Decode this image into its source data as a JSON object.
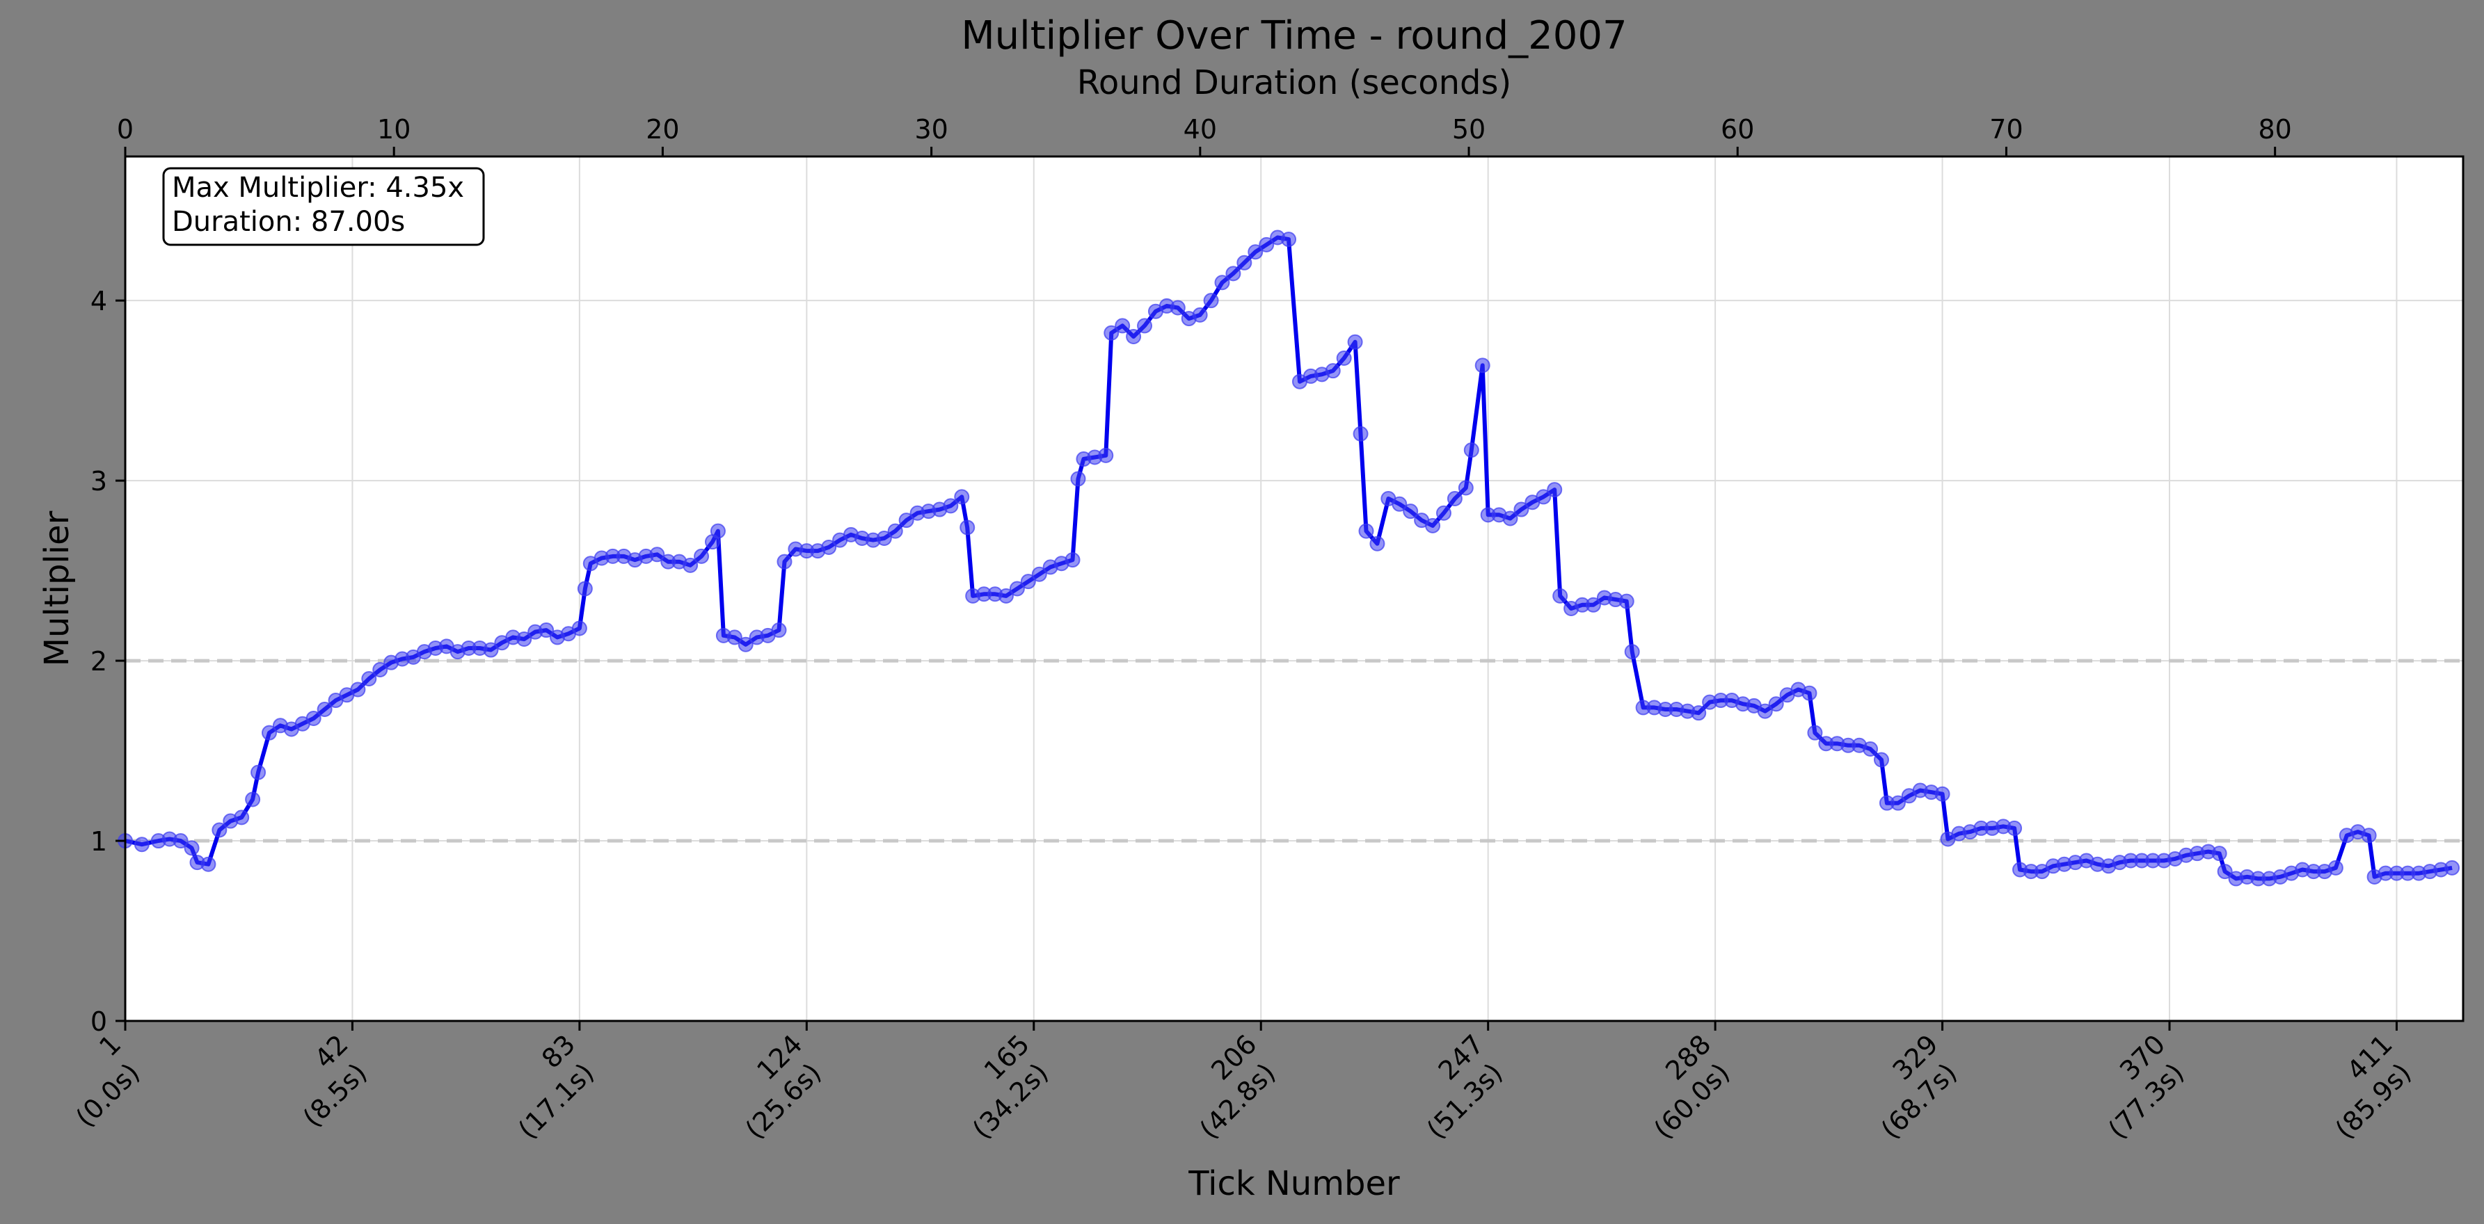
{
  "colors": {
    "background": "#808080",
    "plot_background": "#ffffff",
    "line": "#0000ee",
    "marker": "#3b3bf0",
    "grid": "#dcdcdc",
    "reference_line": "#c8c8c8"
  },
  "chart_data": {
    "type": "line",
    "title": "Multiplier Over Time - round_2007",
    "xlabel": "Tick Number",
    "ylabel": "Multiplier",
    "top_xlabel": "Round Duration (seconds)",
    "xlim": [
      1,
      423
    ],
    "ylim": [
      0,
      4.8
    ],
    "top_xlim": [
      0,
      87
    ],
    "grid": true,
    "y_ticks": [
      0,
      1,
      2,
      3,
      4
    ],
    "top_x_ticks": [
      0,
      10,
      20,
      30,
      40,
      50,
      60,
      70,
      80
    ],
    "x_ticks": [
      {
        "value": 1,
        "label": "1",
        "sublabel": "(0.0s)"
      },
      {
        "value": 42,
        "label": "42",
        "sublabel": "(8.5s)"
      },
      {
        "value": 83,
        "label": "83",
        "sublabel": "(17.1s)"
      },
      {
        "value": 124,
        "label": "124",
        "sublabel": "(25.6s)"
      },
      {
        "value": 165,
        "label": "165",
        "sublabel": "(34.2s)"
      },
      {
        "value": 206,
        "label": "206",
        "sublabel": "(42.8s)"
      },
      {
        "value": 247,
        "label": "247",
        "sublabel": "(51.3s)"
      },
      {
        "value": 288,
        "label": "288",
        "sublabel": "(60.0s)"
      },
      {
        "value": 329,
        "label": "329",
        "sublabel": "(68.7s)"
      },
      {
        "value": 370,
        "label": "370",
        "sublabel": "(77.3s)"
      },
      {
        "value": 411,
        "label": "411",
        "sublabel": "(85.9s)"
      }
    ],
    "reference_lines": [
      1,
      2
    ],
    "annotation": {
      "lines": [
        "Max Multiplier: 4.35x",
        "Duration: 87.00s"
      ],
      "position": "top-left"
    },
    "series": [
      {
        "values": [
          [
            1,
            1.0
          ],
          [
            4,
            0.98
          ],
          [
            7,
            1.0
          ],
          [
            9,
            1.01
          ],
          [
            11,
            1.0
          ],
          [
            13,
            0.96
          ],
          [
            14,
            0.88
          ],
          [
            16,
            0.87
          ],
          [
            18,
            1.06
          ],
          [
            20,
            1.11
          ],
          [
            22,
            1.13
          ],
          [
            24,
            1.23
          ],
          [
            25,
            1.38
          ],
          [
            27,
            1.6
          ],
          [
            29,
            1.64
          ],
          [
            31,
            1.62
          ],
          [
            33,
            1.65
          ],
          [
            35,
            1.68
          ],
          [
            37,
            1.73
          ],
          [
            39,
            1.78
          ],
          [
            41,
            1.81
          ],
          [
            43,
            1.84
          ],
          [
            45,
            1.9
          ],
          [
            47,
            1.95
          ],
          [
            49,
            1.99
          ],
          [
            51,
            2.01
          ],
          [
            53,
            2.02
          ],
          [
            55,
            2.05
          ],
          [
            57,
            2.07
          ],
          [
            59,
            2.08
          ],
          [
            61,
            2.05
          ],
          [
            63,
            2.07
          ],
          [
            65,
            2.07
          ],
          [
            67,
            2.06
          ],
          [
            69,
            2.1
          ],
          [
            71,
            2.13
          ],
          [
            73,
            2.12
          ],
          [
            75,
            2.16
          ],
          [
            77,
            2.17
          ],
          [
            79,
            2.13
          ],
          [
            81,
            2.15
          ],
          [
            83,
            2.18
          ],
          [
            84,
            2.4
          ],
          [
            85,
            2.54
          ],
          [
            87,
            2.57
          ],
          [
            89,
            2.58
          ],
          [
            91,
            2.58
          ],
          [
            93,
            2.56
          ],
          [
            95,
            2.58
          ],
          [
            97,
            2.59
          ],
          [
            99,
            2.55
          ],
          [
            101,
            2.55
          ],
          [
            103,
            2.53
          ],
          [
            105,
            2.58
          ],
          [
            107,
            2.66
          ],
          [
            108,
            2.72
          ],
          [
            109,
            2.14
          ],
          [
            111,
            2.13
          ],
          [
            113,
            2.09
          ],
          [
            115,
            2.13
          ],
          [
            117,
            2.14
          ],
          [
            119,
            2.17
          ],
          [
            120,
            2.55
          ],
          [
            122,
            2.62
          ],
          [
            124,
            2.61
          ],
          [
            126,
            2.61
          ],
          [
            128,
            2.63
          ],
          [
            130,
            2.67
          ],
          [
            132,
            2.7
          ],
          [
            134,
            2.68
          ],
          [
            136,
            2.67
          ],
          [
            138,
            2.68
          ],
          [
            140,
            2.72
          ],
          [
            142,
            2.78
          ],
          [
            144,
            2.82
          ],
          [
            146,
            2.83
          ],
          [
            148,
            2.84
          ],
          [
            150,
            2.86
          ],
          [
            152,
            2.91
          ],
          [
            153,
            2.74
          ],
          [
            154,
            2.36
          ],
          [
            156,
            2.37
          ],
          [
            158,
            2.37
          ],
          [
            160,
            2.36
          ],
          [
            162,
            2.4
          ],
          [
            164,
            2.44
          ],
          [
            166,
            2.48
          ],
          [
            168,
            2.52
          ],
          [
            170,
            2.54
          ],
          [
            172,
            2.56
          ],
          [
            173,
            3.01
          ],
          [
            174,
            3.12
          ],
          [
            176,
            3.13
          ],
          [
            178,
            3.14
          ],
          [
            179,
            3.82
          ],
          [
            181,
            3.86
          ],
          [
            183,
            3.8
          ],
          [
            185,
            3.86
          ],
          [
            187,
            3.94
          ],
          [
            189,
            3.97
          ],
          [
            191,
            3.96
          ],
          [
            193,
            3.9
          ],
          [
            195,
            3.92
          ],
          [
            197,
            4.0
          ],
          [
            199,
            4.1
          ],
          [
            201,
            4.15
          ],
          [
            203,
            4.21
          ],
          [
            205,
            4.27
          ],
          [
            207,
            4.31
          ],
          [
            209,
            4.35
          ],
          [
            211,
            4.34
          ],
          [
            213,
            3.55
          ],
          [
            215,
            3.58
          ],
          [
            217,
            3.59
          ],
          [
            219,
            3.61
          ],
          [
            221,
            3.68
          ],
          [
            223,
            3.77
          ],
          [
            224,
            3.26
          ],
          [
            225,
            2.72
          ],
          [
            227,
            2.65
          ],
          [
            229,
            2.9
          ],
          [
            231,
            2.87
          ],
          [
            233,
            2.83
          ],
          [
            235,
            2.78
          ],
          [
            237,
            2.75
          ],
          [
            239,
            2.82
          ],
          [
            241,
            2.9
          ],
          [
            243,
            2.96
          ],
          [
            244,
            3.17
          ],
          [
            246,
            3.64
          ],
          [
            247,
            2.81
          ],
          [
            249,
            2.81
          ],
          [
            251,
            2.79
          ],
          [
            253,
            2.84
          ],
          [
            255,
            2.88
          ],
          [
            257,
            2.91
          ],
          [
            259,
            2.95
          ],
          [
            260,
            2.36
          ],
          [
            262,
            2.29
          ],
          [
            264,
            2.31
          ],
          [
            266,
            2.31
          ],
          [
            268,
            2.35
          ],
          [
            270,
            2.34
          ],
          [
            272,
            2.33
          ],
          [
            273,
            2.05
          ],
          [
            275,
            1.74
          ],
          [
            277,
            1.74
          ],
          [
            279,
            1.73
          ],
          [
            281,
            1.73
          ],
          [
            283,
            1.72
          ],
          [
            285,
            1.71
          ],
          [
            287,
            1.77
          ],
          [
            289,
            1.78
          ],
          [
            291,
            1.78
          ],
          [
            293,
            1.76
          ],
          [
            295,
            1.75
          ],
          [
            297,
            1.72
          ],
          [
            299,
            1.76
          ],
          [
            301,
            1.81
          ],
          [
            303,
            1.84
          ],
          [
            305,
            1.82
          ],
          [
            306,
            1.6
          ],
          [
            308,
            1.54
          ],
          [
            310,
            1.54
          ],
          [
            312,
            1.53
          ],
          [
            314,
            1.53
          ],
          [
            316,
            1.51
          ],
          [
            318,
            1.45
          ],
          [
            319,
            1.21
          ],
          [
            321,
            1.21
          ],
          [
            323,
            1.25
          ],
          [
            325,
            1.28
          ],
          [
            327,
            1.27
          ],
          [
            329,
            1.26
          ],
          [
            330,
            1.01
          ],
          [
            332,
            1.04
          ],
          [
            334,
            1.05
          ],
          [
            336,
            1.07
          ],
          [
            338,
            1.07
          ],
          [
            340,
            1.08
          ],
          [
            342,
            1.07
          ],
          [
            343,
            0.84
          ],
          [
            345,
            0.83
          ],
          [
            347,
            0.83
          ],
          [
            349,
            0.86
          ],
          [
            351,
            0.87
          ],
          [
            353,
            0.88
          ],
          [
            355,
            0.89
          ],
          [
            357,
            0.87
          ],
          [
            359,
            0.86
          ],
          [
            361,
            0.88
          ],
          [
            363,
            0.89
          ],
          [
            365,
            0.89
          ],
          [
            367,
            0.89
          ],
          [
            369,
            0.89
          ],
          [
            371,
            0.9
          ],
          [
            373,
            0.92
          ],
          [
            375,
            0.93
          ],
          [
            377,
            0.94
          ],
          [
            379,
            0.93
          ],
          [
            380,
            0.83
          ],
          [
            382,
            0.79
          ],
          [
            384,
            0.8
          ],
          [
            386,
            0.79
          ],
          [
            388,
            0.79
          ],
          [
            390,
            0.8
          ],
          [
            392,
            0.82
          ],
          [
            394,
            0.84
          ],
          [
            396,
            0.83
          ],
          [
            398,
            0.83
          ],
          [
            400,
            0.85
          ],
          [
            402,
            1.03
          ],
          [
            404,
            1.05
          ],
          [
            406,
            1.03
          ],
          [
            407,
            0.8
          ],
          [
            409,
            0.82
          ],
          [
            411,
            0.82
          ],
          [
            413,
            0.82
          ],
          [
            415,
            0.82
          ],
          [
            417,
            0.83
          ],
          [
            419,
            0.84
          ],
          [
            421,
            0.85
          ]
        ]
      }
    ]
  }
}
